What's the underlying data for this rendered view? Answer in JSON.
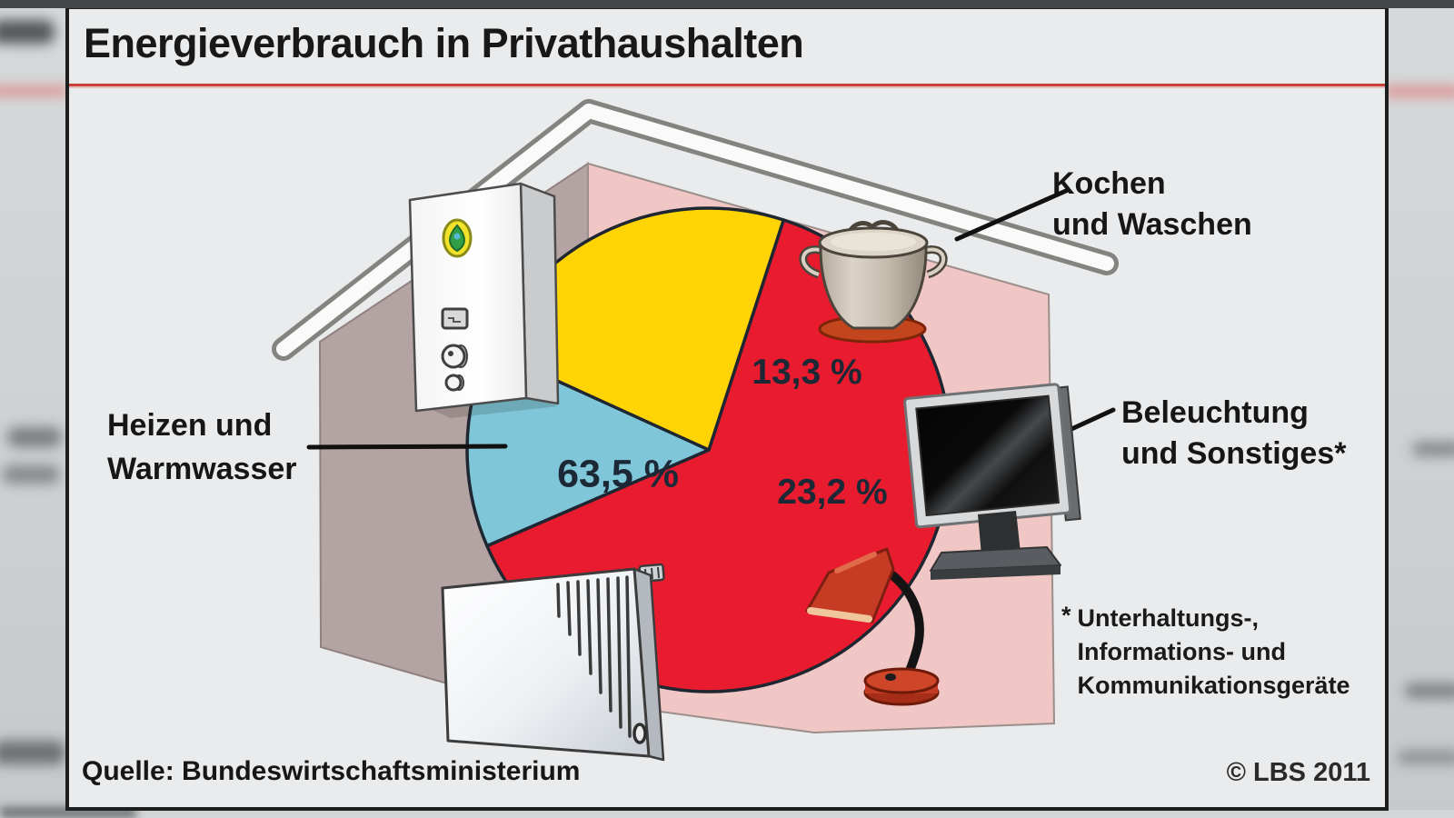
{
  "title": "Energieverbrauch in Privathaushalten",
  "source": "Quelle: Bundeswirtschaftsministerium",
  "copyright": "© LBS 2011",
  "footnote": {
    "marker": "*",
    "lines": [
      "Unterhaltungs-,",
      "Informations- und",
      "Kommunikationsgeräte"
    ]
  },
  "labels": {
    "heizen": {
      "lines": [
        "Heizen und",
        "Warmwasser"
      ]
    },
    "kochen": {
      "lines": [
        "Kochen",
        "und Waschen"
      ]
    },
    "beleuchtung": {
      "lines": [
        "Beleuchtung",
        "und Sonstiges*"
      ]
    }
  },
  "colors": {
    "accent_rule": "#c84038",
    "panel_bg": "#e9ebec",
    "house_pink": "#f1c7c5",
    "house_mauve": "#b3a3a2",
    "slice_outline": "#1e2631"
  },
  "chart_data": {
    "type": "pie",
    "title": "Energieverbrauch in Privathaushalten",
    "unit": "%",
    "start_angle_deg": 72,
    "direction": "clockwise",
    "legend_position": "callout-labels",
    "slices": [
      {
        "name": "Heizen und Warmwasser",
        "value": 63.5,
        "label": "63,5 %",
        "color": "#e81c2e"
      },
      {
        "name": "Kochen und Waschen",
        "value": 13.3,
        "label": "13,3 %",
        "color": "#7ec6d8"
      },
      {
        "name": "Beleuchtung und Sonstiges*",
        "value": 23.2,
        "label": "23,2 %",
        "color": "#ffd405"
      }
    ],
    "footnote": "* Unterhaltungs-, Informations- und Kommunikationsgeräte",
    "source": "Quelle: Bundeswirtschaftsministerium",
    "copyright": "© LBS 2011",
    "illustrations": [
      "gas-boiler",
      "radiator",
      "cooking-pot",
      "computer-monitor",
      "desk-lamp",
      "house-outline"
    ]
  }
}
